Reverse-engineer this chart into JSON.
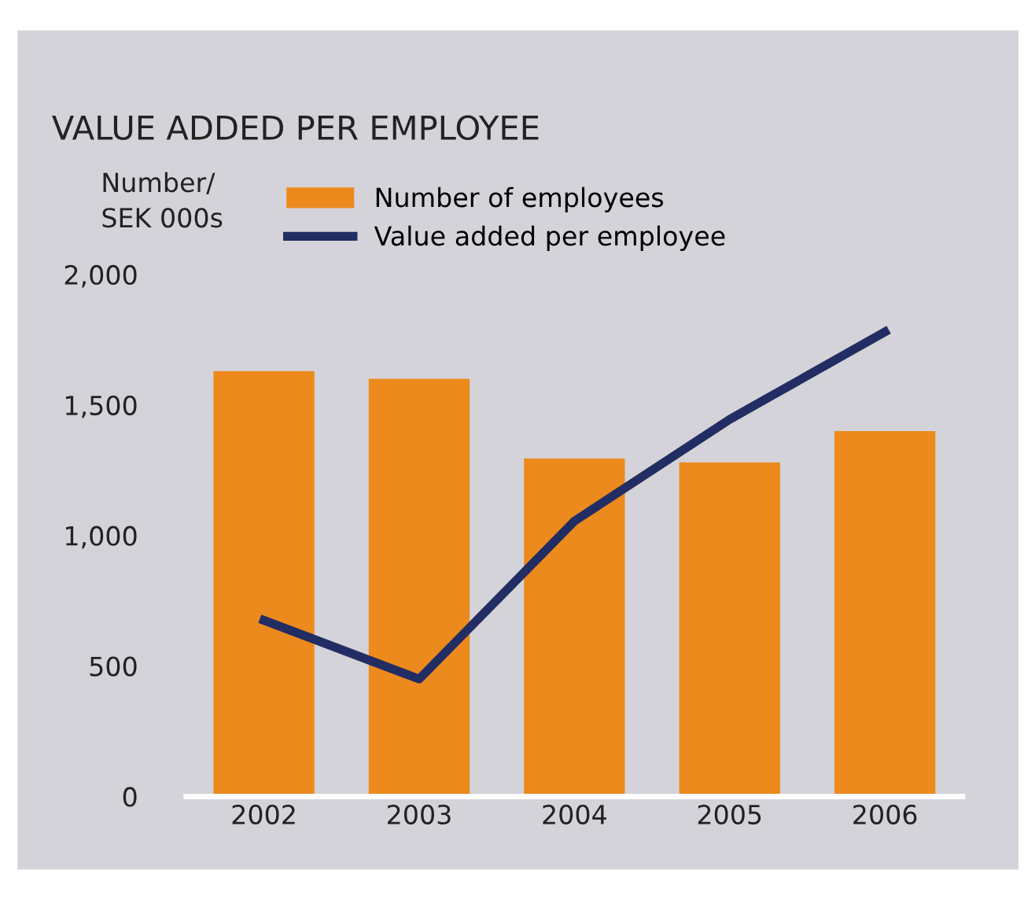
{
  "chart_data": {
    "type": "bar",
    "title": "VALUE ADDED PER EMPLOYEE",
    "ylabel": "Number/\nSEK 000s",
    "categories": [
      "2002",
      "2003",
      "2004",
      "2005",
      "2006"
    ],
    "series": [
      {
        "name": "Number of employees",
        "color": "#ec8a1d",
        "values": [
          1630,
          1600,
          1295,
          1280,
          1400
        ]
      },
      {
        "name": "Value added per employee",
        "type": "line",
        "color": "#222d63",
        "values": [
          675,
          450,
          1055,
          1445,
          1780
        ]
      }
    ],
    "ylim": [
      0,
      2000
    ],
    "yticks": [
      {
        "value": 0,
        "label": "0"
      },
      {
        "value": 500,
        "label": "500"
      },
      {
        "value": 1000,
        "label": "1,000"
      },
      {
        "value": 1500,
        "label": "1,500"
      },
      {
        "value": 2000,
        "label": "2,000"
      }
    ],
    "grid": false,
    "legend": "top"
  }
}
